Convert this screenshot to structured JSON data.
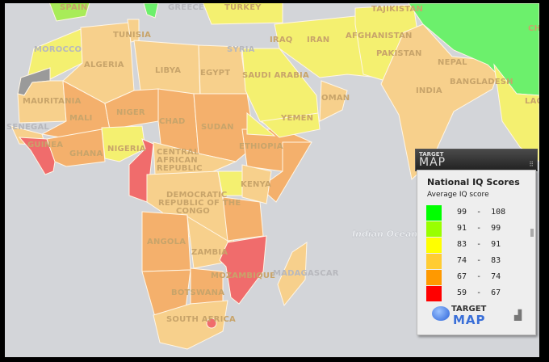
{
  "colors": {
    "background": "#d3d5d9",
    "c99_108": "#6cf06c",
    "c91_99": "#a8ec58",
    "c83_91": "#f4f070",
    "c74_83": "#f7d08c",
    "c67_74": "#f4b06c",
    "c59_67": "#f06c6c",
    "no_data": "#9a9a9a"
  },
  "map": {
    "ocean_label": "Indian Ocean",
    "countries": {
      "spain": "SPAIN",
      "greece": "GREECE",
      "turkey": "TURKEY",
      "tunisia": "TUNISIA",
      "morocco": "MOROCCO",
      "algeria": "ALGERIA",
      "libya": "LIBYA",
      "egypt": "EGYPT",
      "syria": "SYRIA",
      "iraq": "IRAQ",
      "iran": "IRAN",
      "afghanistan": "AFGHANISTAN",
      "pakistan": "PAKISTAN",
      "tajikistan": "TAJIKISTAN",
      "china": "CHINA",
      "saudi_arabia": "SAUDI ARABIA",
      "oman": "OMAN",
      "yemen": "YEMEN",
      "india": "INDIA",
      "nepal": "NEPAL",
      "bangladesh": "BANGLADESH",
      "laos": "LAOS",
      "mauritania": "MAURITANIA",
      "mali": "MALI",
      "niger": "NIGER",
      "chad": "CHAD",
      "sudan": "SUDAN",
      "senegal": "SENEGAL",
      "guinea": "GUINEA",
      "ghana": "GHANA",
      "nigeria": "NIGERIA",
      "ethiopia": "ETHIOPIA",
      "car_1": "CENTRAL",
      "car_2": "AFRICAN",
      "car_3": "REPUBLIC",
      "drc_1": "DEMOCRATIC",
      "drc_2": "REPUBLIC OF THE",
      "drc_3": "CONGO",
      "kenya": "KENYA",
      "angola": "ANGOLA",
      "zambia": "ZAMBIA",
      "mozambique": "MOZAMBIQUE",
      "madagascar": "MADAGASCAR",
      "botswana": "BOTSWANA",
      "south_africa": "SOUTH AFRICA"
    }
  },
  "legend": {
    "brand_small": "TARGET",
    "brand_large": "MAP",
    "title": "National IQ Scores",
    "subtitle": "Average IQ score",
    "ranges": [
      {
        "label": "99  -  108",
        "color": "#00ff00"
      },
      {
        "label": "91  -  99",
        "color": "#99ff00"
      },
      {
        "label": "83  -  91",
        "color": "#ffff00"
      },
      {
        "label": "74  -  83",
        "color": "#ffcc33"
      },
      {
        "label": "67  -  74",
        "color": "#ff9900"
      },
      {
        "label": "59  -  67",
        "color": "#ff0000"
      }
    ],
    "logo_small": "TARGET",
    "logo_large": "MAP"
  }
}
